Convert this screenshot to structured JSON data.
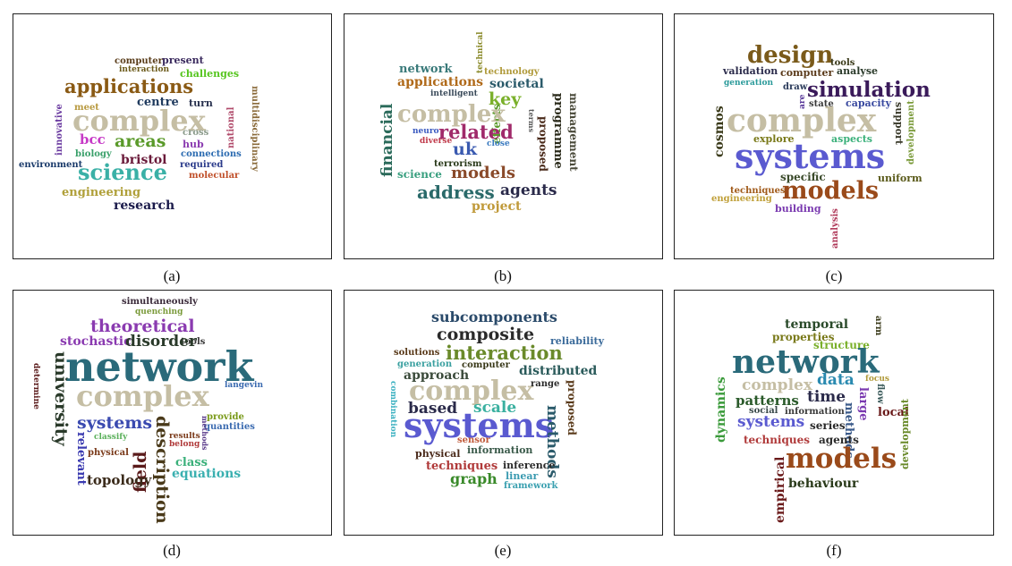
{
  "panels": [
    {
      "caption": "(a)",
      "words": [
        "computer",
        "present",
        "interaction",
        "challenges",
        "applications",
        "centre",
        "turn",
        "multidisciplinary",
        "innovative",
        "meet",
        "complex",
        "national",
        "cross",
        "bcc",
        "areas",
        "hub",
        "biology",
        "bristol",
        "connections",
        "environment",
        "science",
        "required",
        "molecular",
        "engineering",
        "research"
      ],
      "colors": [
        "#5a3d1a",
        "#3a2a5e",
        "#6b5a1a",
        "#55c51e",
        "#8a5a14",
        "#1f3a5e",
        "#2a3350",
        "#8a6a3a",
        "#6a3aa0",
        "#b89a40",
        "#c5bea4",
        "#b04a6a",
        "#8a9a8a",
        "#c63ac6",
        "#5a9a2a",
        "#8a3ab0",
        "#3aa06a",
        "#6a1a3a",
        "#2a6ab0",
        "#1a3a6a",
        "#3ab0a6",
        "#2a3a8a",
        "#c0502a",
        "#b0a03a",
        "#1a1a4a"
      ]
    },
    {
      "caption": "(b)",
      "words": [
        "technical",
        "technology",
        "network",
        "applications",
        "intelligent",
        "societal",
        "key",
        "effects",
        "programme",
        "management",
        "financial",
        "complex",
        "terms",
        "proposed",
        "neuro",
        "related",
        "diverse",
        "close",
        "uk",
        "terrorism",
        "science",
        "models",
        "address",
        "agents",
        "project"
      ],
      "colors": [
        "#8a8a2a",
        "#b09a3a",
        "#3a7a7a",
        "#b06a1a",
        "#3a4a5a",
        "#2a5a6a",
        "#7ab02a",
        "#5a9a2a",
        "#2a2a1a",
        "#4a4a3a",
        "#2a6a5a",
        "#c5bea4",
        "#5a5a5a",
        "#4a2a1a",
        "#3a5ac0",
        "#a02a6a",
        "#c03a4a",
        "#3a7ac0",
        "#3a5ab0",
        "#2a3a1a",
        "#3aa080",
        "#8a4a2a",
        "#2a6a6a",
        "#2a2a4a",
        "#c09a3a"
      ]
    },
    {
      "caption": "(c)",
      "words": [
        "design",
        "tools",
        "validation",
        "computer",
        "analyse",
        "generation",
        "draw",
        "simulation",
        "are",
        "state",
        "capacity",
        "support",
        "cosmos",
        "complex",
        "development",
        "explore",
        "aspects",
        "systems",
        "specific",
        "uniform",
        "techniques",
        "models",
        "engineering",
        "building",
        "analysis"
      ],
      "colors": [
        "#7a5a1a",
        "#3a3a1a",
        "#2a2a4a",
        "#5a3a1a",
        "#2a3a2a",
        "#2a9a9a",
        "#2a3a5a",
        "#3a1a5a",
        "#5a3a9a",
        "#3a3a3a",
        "#3a4aa0",
        "#3a3a2a",
        "#3a3a1a",
        "#c5bea4",
        "#7a9a3a",
        "#7a7a1a",
        "#3ab07a",
        "#5a5ad0",
        "#3a4a2a",
        "#5a5a1a",
        "#a05a1a",
        "#9a4a1a",
        "#c0a03a",
        "#7a3ab0",
        "#b03a5a"
      ]
    },
    {
      "caption": "(d)",
      "words": [
        "simultaneously",
        "quenching",
        "theoretical",
        "tools",
        "stochastic",
        "disorder",
        "university",
        "network",
        "langevin",
        "determine",
        "complex",
        "systems",
        "provide",
        "description",
        "classify",
        "results",
        "quantities",
        "belong",
        "methods",
        "relevant",
        "physical",
        "field",
        "class",
        "topology",
        "equations"
      ],
      "colors": [
        "#3a2a3a",
        "#7a9a3a",
        "#8a3ab0",
        "#3a3a3a",
        "#8a3ab0",
        "#2a3a2a",
        "#2a3a2a",
        "#2a6a7a",
        "#3a6ab0",
        "#5a1a1a",
        "#c5bea4",
        "#3a4ab0",
        "#7a9a1a",
        "#4a3a1a",
        "#5ab05a",
        "#7a3a1a",
        "#3a6ab0",
        "#b03a3a",
        "#5a3a8a",
        "#3a3ab0",
        "#7a3a1a",
        "#5a1a1a",
        "#3ab07a",
        "#3a2a1a",
        "#3ab0b0"
      ]
    },
    {
      "caption": "(e)",
      "words": [
        "subcomponents",
        "composite",
        "reliability",
        "solutions",
        "interaction",
        "generation",
        "computer",
        "approach",
        "distributed",
        "complex",
        "range",
        "combination",
        "based",
        "scale",
        "proposed",
        "systems",
        "methods",
        "sensor",
        "information",
        "physical",
        "techniques",
        "inference",
        "linear",
        "graph",
        "framework"
      ],
      "colors": [
        "#2a4a6a",
        "#2a2a2a",
        "#3a6a9a",
        "#5a3a1a",
        "#6a8a2a",
        "#3aa0a0",
        "#3a3a1a",
        "#3a4a3a",
        "#2a5a5a",
        "#c5bea4",
        "#2a2a2a",
        "#3ab0c0",
        "#2a2a4a",
        "#3ab0a0",
        "#5a3a1a",
        "#5a5ad0",
        "#2a5a6a",
        "#c05a3a",
        "#3a5a4a",
        "#4a2a1a",
        "#b03a3a",
        "#2a2a2a",
        "#3a9ab0",
        "#3a8a2a",
        "#3aa0b0"
      ]
    },
    {
      "caption": "(f)",
      "words": [
        "temporal",
        "arm",
        "properties",
        "structure",
        "network",
        "focus",
        "data",
        "complex",
        "time",
        "patterns",
        "large",
        "flow",
        "dynamics",
        "social",
        "information",
        "local",
        "series",
        "systems",
        "methods",
        "development",
        "techniques",
        "agents",
        "empirical",
        "models",
        "behaviour"
      ],
      "colors": [
        "#2a4a2a",
        "#3a3a1a",
        "#7a7a1a",
        "#7ab02a",
        "#2a6a7a",
        "#b09a3a",
        "#2a8ab0",
        "#c5bea4",
        "#2a2a4a",
        "#2a5a2a",
        "#7a3ab0",
        "#3a5a5a",
        "#3a9a3a",
        "#3a4a4a",
        "#3a3a3a",
        "#6a1a1a",
        "#2a2a2a",
        "#5a5ad0",
        "#3a5a8a",
        "#6a8a2a",
        "#b03a3a",
        "#2a2a2a",
        "#6a1a1a",
        "#9a4a1a",
        "#2a3a1a"
      ]
    }
  ]
}
